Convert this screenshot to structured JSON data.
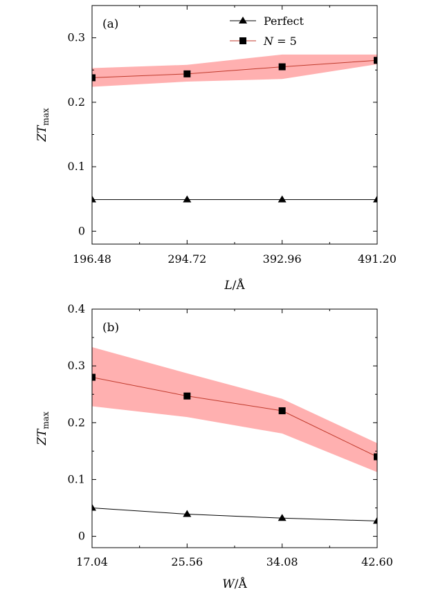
{
  "colors": {
    "band": "#ffb0b0",
    "n5_line": "#c0392b",
    "perfect_line": "#000000",
    "axis": "#000000"
  },
  "legend": {
    "perfect": "Perfect",
    "n5_var": "N",
    "n5_rest": " = 5"
  },
  "chart_data": [
    {
      "type": "line",
      "panel_label": "(a)",
      "xlabel_var": "L",
      "xlabel_unit": "/Å",
      "ylabel_var": "ZT",
      "ylabel_sub": "max",
      "x": [
        196.48,
        294.72,
        392.96,
        491.2
      ],
      "xticks": [
        "196.48",
        "294.72",
        "392.96",
        "491.20"
      ],
      "xlim": [
        196.48,
        491.2
      ],
      "ylim": [
        -0.02,
        0.35
      ],
      "yticks": [
        0,
        0.1,
        0.2,
        0.3
      ],
      "ytick_labels": [
        "0",
        "0.1",
        "0.2",
        "0.3"
      ],
      "series": [
        {
          "name": "Perfect",
          "marker": "triangle",
          "values": [
            0.049,
            0.049,
            0.049,
            0.049
          ]
        },
        {
          "name": "N = 5",
          "marker": "square",
          "values": [
            0.238,
            0.244,
            0.255,
            0.265
          ],
          "band_upper": [
            0.253,
            0.258,
            0.274,
            0.274
          ],
          "band_lower": [
            0.224,
            0.232,
            0.236,
            0.259
          ]
        }
      ]
    },
    {
      "type": "line",
      "panel_label": "(b)",
      "xlabel_var": "W",
      "xlabel_unit": "/Å",
      "ylabel_var": "ZT",
      "ylabel_sub": "max",
      "x": [
        17.04,
        25.56,
        34.08,
        42.6
      ],
      "xticks": [
        "17.04",
        "25.56",
        "34.08",
        "42.60"
      ],
      "xlim": [
        17.04,
        42.6
      ],
      "ylim": [
        -0.02,
        0.4
      ],
      "yticks": [
        0,
        0.1,
        0.2,
        0.3,
        0.4
      ],
      "ytick_labels": [
        "0",
        "0.1",
        "0.2",
        "0.3",
        "0.4"
      ],
      "series": [
        {
          "name": "Perfect",
          "marker": "triangle",
          "values": [
            0.05,
            0.039,
            0.032,
            0.027
          ]
        },
        {
          "name": "N = 5",
          "marker": "square",
          "values": [
            0.28,
            0.247,
            0.221,
            0.14
          ],
          "band_upper": [
            0.333,
            0.287,
            0.242,
            0.164
          ],
          "band_lower": [
            0.229,
            0.21,
            0.181,
            0.113
          ]
        }
      ]
    }
  ]
}
